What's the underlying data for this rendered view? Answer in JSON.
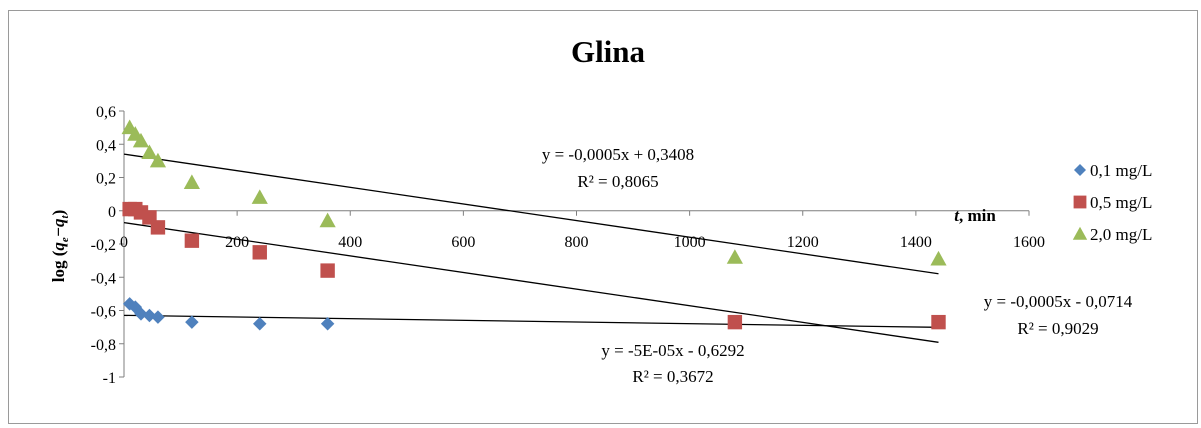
{
  "chart_data": {
    "type": "scatter",
    "title": "Glina",
    "ylabel": "log (q_e−q_t)",
    "xlabel": "t, min",
    "xlim": [
      0,
      1600
    ],
    "ylim": [
      -1,
      0.6
    ],
    "xticks": [
      "0",
      "200",
      "400",
      "600",
      "800",
      "1000",
      "1200",
      "1400",
      "1600"
    ],
    "yticks": [
      "0,6",
      "0,4",
      "0,2",
      "0",
      "-0,2",
      "-0,4",
      "-0,6",
      "-0,8",
      "-1"
    ],
    "legend_position": "right",
    "grid": false,
    "series": [
      {
        "name": "0,1 mg/L",
        "marker": "diamond",
        "color": "#4f81bd",
        "x": [
          10,
          20,
          30,
          45,
          60,
          120,
          240,
          360
        ],
        "y": [
          -0.56,
          -0.58,
          -0.62,
          -0.63,
          -0.64,
          -0.67,
          -0.68,
          -0.68
        ],
        "trendline": {
          "slope": -5e-05,
          "intercept": -0.6292,
          "equation": "y = -5E-05x  - 0,6292",
          "r2": "R² = 0,3672",
          "x_range": [
            0,
            1440
          ]
        }
      },
      {
        "name": "0,5 mg/L",
        "marker": "square",
        "color": "#c0504d",
        "x": [
          10,
          20,
          30,
          45,
          60,
          120,
          240,
          360,
          1080,
          1440
        ],
        "y": [
          0.01,
          0.01,
          -0.01,
          -0.04,
          -0.1,
          -0.18,
          -0.25,
          -0.36,
          -0.67,
          -0.67
        ],
        "trendline": {
          "slope": -0.0005,
          "intercept": -0.0714,
          "equation": "y = -0,0005x  - 0,0714",
          "r2": "R² = 0,9029",
          "x_range": [
            0,
            1440
          ]
        }
      },
      {
        "name": "2,0 mg/L",
        "marker": "triangle",
        "color": "#9bbb59",
        "x": [
          10,
          20,
          30,
          45,
          60,
          120,
          240,
          360,
          1080,
          1440
        ],
        "y": [
          0.5,
          0.46,
          0.42,
          0.35,
          0.3,
          0.17,
          0.08,
          -0.06,
          -0.28,
          -0.29
        ],
        "trendline": {
          "slope": -0.0005,
          "intercept": 0.3408,
          "equation": "y = -0,0005x  + 0,3408",
          "r2": "R² = 0,8065",
          "x_range": [
            0,
            1440
          ]
        }
      }
    ]
  }
}
